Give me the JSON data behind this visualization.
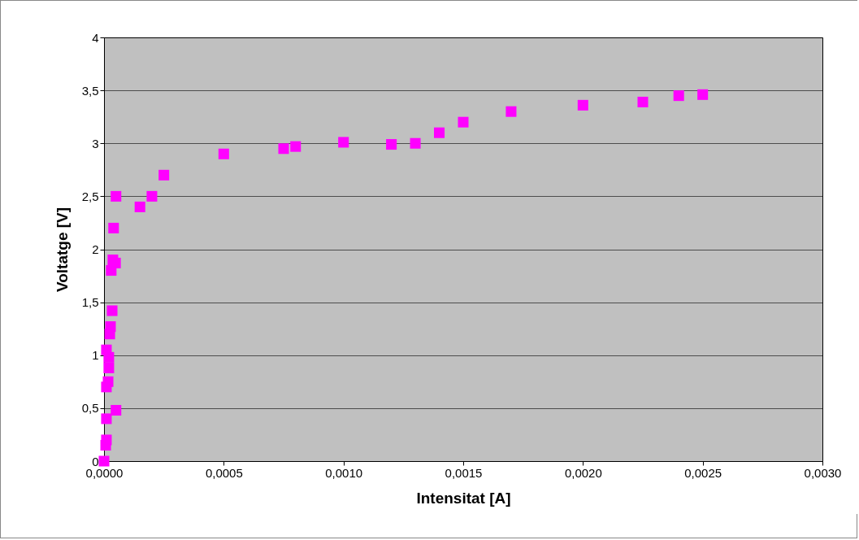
{
  "chart_data": {
    "type": "scatter",
    "xlabel": "Intensitat [A]",
    "ylabel": "Voltatge [V]",
    "marker": "square",
    "grid": "y",
    "x": [
      0,
      7e-06,
      1e-05,
      1e-05,
      5e-05,
      1e-05,
      1.7e-05,
      2e-05,
      2e-05,
      1e-05,
      2.4e-05,
      2.7e-05,
      3.4e-05,
      3e-05,
      3.7e-05,
      4.8e-05,
      4e-05,
      5e-05,
      0.00015,
      0.0002,
      0.00025,
      0.0005,
      0.00075,
      0.0008,
      0.001,
      0.0012,
      0.0013,
      0.0014,
      0.0015,
      0.0017,
      0.002,
      0.00225,
      0.0024,
      0.0025
    ],
    "series": [
      {
        "color": "#ff00ff",
        "values": [
          0,
          0.15,
          0.2,
          0.4,
          0.48,
          0.7,
          0.75,
          0.88,
          0.98,
          1.05,
          1.2,
          1.27,
          1.42,
          1.8,
          1.9,
          1.87,
          2.2,
          2.5,
          2.4,
          2.5,
          2.7,
          2.9,
          2.95,
          2.97,
          3.01,
          2.99,
          3.0,
          3.1,
          3.2,
          3.3,
          3.36,
          3.39,
          3.45,
          3.46
        ]
      }
    ],
    "xlim": [
      0,
      0.003
    ],
    "ylim": [
      0,
      4
    ],
    "xticks": [
      {
        "value": 0,
        "label": "0,0000"
      },
      {
        "value": 0.0005,
        "label": "0,0005"
      },
      {
        "value": 0.001,
        "label": "0,0010"
      },
      {
        "value": 0.0015,
        "label": "0,0015"
      },
      {
        "value": 0.002,
        "label": "0,0020"
      },
      {
        "value": 0.0025,
        "label": "0,0025"
      },
      {
        "value": 0.003,
        "label": "0,0030"
      }
    ],
    "yticks": [
      0,
      {
        "value": 0.5,
        "label": "0,5"
      },
      1,
      {
        "value": 1.5,
        "label": "1,5"
      },
      2,
      {
        "value": 2.5,
        "label": "2,5"
      },
      3,
      {
        "value": 3.5,
        "label": "3,5"
      },
      4
    ]
  }
}
